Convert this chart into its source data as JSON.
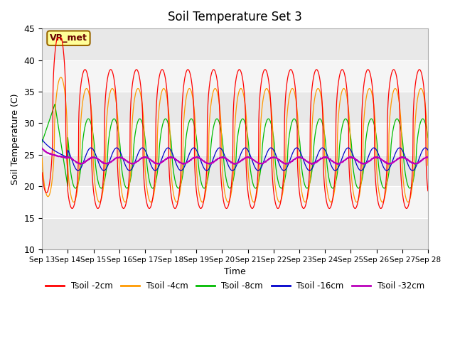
{
  "title": "Soil Temperature Set 3",
  "xlabel": "Time",
  "ylabel": "Soil Temperature (C)",
  "ylim": [
    10,
    45
  ],
  "yticks": [
    10,
    15,
    20,
    25,
    30,
    35,
    40,
    45
  ],
  "xtick_labels": [
    "Sep 13",
    "Sep 14",
    "Sep 15",
    "Sep 16",
    "Sep 17",
    "Sep 18",
    "Sep 19",
    "Sep 20",
    "Sep 21",
    "Sep 22",
    "Sep 23",
    "Sep 24",
    "Sep 25",
    "Sep 26",
    "Sep 27",
    "Sep 28"
  ],
  "annotation_text": "VR_met",
  "bg_color": "#e8e8e8",
  "stripe_color": "#f5f5f5",
  "series_colors": [
    "#ff0000",
    "#ff9900",
    "#00bb00",
    "#0000cc",
    "#bb00bb"
  ],
  "legend_labels": [
    "Tsoil -2cm",
    "Tsoil -4cm",
    "Tsoil -8cm",
    "Tsoil -16cm",
    "Tsoil -32cm"
  ]
}
